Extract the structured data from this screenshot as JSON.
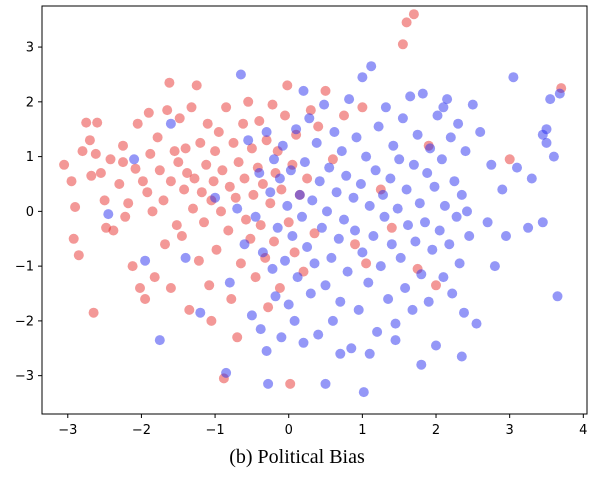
{
  "caption": "(b) Political Bias",
  "chart_data": {
    "type": "scatter",
    "title": "",
    "xlabel": "",
    "ylabel": "",
    "xlim": [
      -3.35,
      4.05
    ],
    "ylim": [
      -3.7,
      3.75
    ],
    "xticks": [
      -3,
      -2,
      -1,
      0,
      1,
      2,
      3,
      4
    ],
    "yticks": [
      -3,
      -2,
      -1,
      0,
      1,
      2,
      3
    ],
    "grid": false,
    "legend": "none",
    "colors": {
      "series_a": "#e8312f",
      "series_b": "#2a2ff0"
    },
    "marker_opacity": 0.5,
    "series": [
      {
        "color": "#e8312f",
        "points": [
          [
            -3.05,
            0.85
          ],
          [
            -2.95,
            0.55
          ],
          [
            -2.92,
            -0.5
          ],
          [
            -2.9,
            0.08
          ],
          [
            -2.85,
            -0.8
          ],
          [
            -2.75,
            1.62
          ],
          [
            -2.7,
            1.3
          ],
          [
            -2.68,
            0.65
          ],
          [
            -2.62,
            1.05
          ],
          [
            -2.6,
            1.62
          ],
          [
            -2.65,
            -1.85
          ],
          [
            -2.55,
            0.7
          ],
          [
            -2.5,
            0.2
          ],
          [
            -2.48,
            -0.3
          ],
          [
            -2.42,
            0.95
          ],
          [
            -2.38,
            -0.35
          ],
          [
            -2.3,
            0.5
          ],
          [
            -2.25,
            1.2
          ],
          [
            -2.22,
            -0.1
          ],
          [
            -2.18,
            0.15
          ],
          [
            -2.12,
            -1.0
          ],
          [
            -2.08,
            0.78
          ],
          [
            -2.05,
            1.6
          ],
          [
            -2.02,
            -1.4
          ],
          [
            -1.98,
            0.55
          ],
          [
            -1.95,
            -1.6
          ],
          [
            -1.92,
            0.35
          ],
          [
            -1.88,
            1.05
          ],
          [
            -1.85,
            0.0
          ],
          [
            -1.82,
            -1.2
          ],
          [
            -1.78,
            1.35
          ],
          [
            -1.75,
            0.75
          ],
          [
            -1.7,
            0.2
          ],
          [
            -1.68,
            -0.6
          ],
          [
            -1.65,
            1.85
          ],
          [
            -1.62,
            2.35
          ],
          [
            -1.6,
            0.55
          ],
          [
            -1.55,
            1.1
          ],
          [
            -1.52,
            -0.25
          ],
          [
            -1.5,
            0.9
          ],
          [
            -1.48,
            1.7
          ],
          [
            -1.45,
            -0.45
          ],
          [
            -1.42,
            0.4
          ],
          [
            -1.4,
            1.15
          ],
          [
            -1.38,
            0.7
          ],
          [
            -1.35,
            -1.8
          ],
          [
            -1.32,
            1.9
          ],
          [
            -1.3,
            0.05
          ],
          [
            -1.28,
            0.6
          ],
          [
            -1.25,
            2.3
          ],
          [
            -1.22,
            -0.9
          ],
          [
            -1.2,
            1.25
          ],
          [
            -1.18,
            0.35
          ],
          [
            -1.15,
            -0.2
          ],
          [
            -1.12,
            0.85
          ],
          [
            -1.1,
            1.6
          ],
          [
            -1.08,
            -1.35
          ],
          [
            -1.05,
            0.2
          ],
          [
            -1.02,
            0.55
          ],
          [
            -1.0,
            1.1
          ],
          [
            -0.98,
            -0.7
          ],
          [
            -0.95,
            1.45
          ],
          [
            -0.92,
            0.0
          ],
          [
            -0.9,
            0.75
          ],
          [
            -0.88,
            -3.05
          ],
          [
            -0.85,
            1.9
          ],
          [
            -0.82,
            -0.35
          ],
          [
            -0.8,
            0.45
          ],
          [
            -0.78,
            -1.6
          ],
          [
            -0.75,
            1.25
          ],
          [
            -0.72,
            0.25
          ],
          [
            -0.7,
            -2.3
          ],
          [
            -0.68,
            0.9
          ],
          [
            -0.65,
            -0.95
          ],
          [
            -0.62,
            1.6
          ],
          [
            -0.6,
            0.6
          ],
          [
            -0.58,
            -0.15
          ],
          [
            -0.55,
            2.0
          ],
          [
            -0.52,
            -0.5
          ],
          [
            -0.5,
            1.15
          ],
          [
            -0.48,
            0.3
          ],
          [
            -0.45,
            -1.2
          ],
          [
            -0.42,
            0.8
          ],
          [
            -0.4,
            1.65
          ],
          [
            -0.38,
            -0.25
          ],
          [
            -0.35,
            0.5
          ],
          [
            -0.32,
            -0.85
          ],
          [
            -0.3,
            1.3
          ],
          [
            -0.28,
            -1.75
          ],
          [
            -0.25,
            0.15
          ],
          [
            -0.22,
            1.95
          ],
          [
            -0.2,
            -0.55
          ],
          [
            -0.18,
            0.7
          ],
          [
            -0.15,
            1.1
          ],
          [
            -0.12,
            -1.4
          ],
          [
            -0.1,
            0.4
          ],
          [
            -0.05,
            1.75
          ],
          [
            -0.02,
            2.3
          ],
          [
            0.0,
            -0.2
          ],
          [
            0.02,
            -3.15
          ],
          [
            0.05,
            0.85
          ],
          [
            0.08,
            -0.75
          ],
          [
            0.1,
            1.4
          ],
          [
            0.15,
            0.3
          ],
          [
            0.2,
            -1.1
          ],
          [
            0.25,
            0.6
          ],
          [
            0.3,
            1.85
          ],
          [
            0.35,
            -0.4
          ],
          [
            0.4,
            1.55
          ],
          [
            0.5,
            2.2
          ],
          [
            0.6,
            0.95
          ],
          [
            0.75,
            1.75
          ],
          [
            0.9,
            -0.6
          ],
          [
            1.0,
            1.9
          ],
          [
            1.05,
            -0.95
          ],
          [
            1.25,
            0.4
          ],
          [
            1.4,
            -0.3
          ],
          [
            1.55,
            3.05
          ],
          [
            1.6,
            3.45
          ],
          [
            1.7,
            3.6
          ],
          [
            1.75,
            -1.05
          ],
          [
            1.9,
            1.2
          ],
          [
            2.0,
            -1.35
          ],
          [
            3.0,
            0.95
          ],
          [
            3.7,
            2.25
          ],
          [
            -1.05,
            -2.0
          ],
          [
            -1.6,
            -1.4
          ],
          [
            -2.25,
            0.9
          ],
          [
            -1.9,
            1.8
          ],
          [
            -2.8,
            1.1
          ]
        ]
      },
      {
        "color": "#2a2ff0",
        "points": [
          [
            -2.45,
            -0.05
          ],
          [
            -2.1,
            0.95
          ],
          [
            -1.95,
            -0.9
          ],
          [
            -1.75,
            -2.35
          ],
          [
            -1.6,
            1.6
          ],
          [
            -1.4,
            -0.85
          ],
          [
            -1.2,
            -1.85
          ],
          [
            -1.0,
            0.25
          ],
          [
            -0.85,
            -2.95
          ],
          [
            -0.8,
            -1.3
          ],
          [
            -0.7,
            0.05
          ],
          [
            -0.65,
            2.5
          ],
          [
            -0.6,
            -0.6
          ],
          [
            -0.55,
            1.3
          ],
          [
            -0.5,
            -1.9
          ],
          [
            -0.45,
            -0.1
          ],
          [
            -0.4,
            0.7
          ],
          [
            -0.38,
            -2.15
          ],
          [
            -0.35,
            -0.75
          ],
          [
            -0.3,
            1.45
          ],
          [
            -0.28,
            -3.15
          ],
          [
            -0.25,
            0.35
          ],
          [
            -0.22,
            -1.05
          ],
          [
            -0.2,
            0.95
          ],
          [
            -0.18,
            -1.55
          ],
          [
            -0.15,
            -0.3
          ],
          [
            -0.12,
            0.6
          ],
          [
            -0.1,
            -2.3
          ],
          [
            -0.08,
            1.2
          ],
          [
            -0.05,
            -0.9
          ],
          [
            -0.02,
            0.1
          ],
          [
            0.0,
            -1.7
          ],
          [
            0.03,
            0.75
          ],
          [
            0.05,
            -0.45
          ],
          [
            0.08,
            -2.0
          ],
          [
            0.1,
            1.5
          ],
          [
            0.12,
            -1.2
          ],
          [
            0.15,
            0.3
          ],
          [
            0.18,
            -0.1
          ],
          [
            0.2,
            -2.4
          ],
          [
            0.22,
            0.9
          ],
          [
            0.25,
            -0.65
          ],
          [
            0.28,
            1.7
          ],
          [
            0.3,
            -1.5
          ],
          [
            0.32,
            0.2
          ],
          [
            0.35,
            -0.95
          ],
          [
            0.38,
            1.25
          ],
          [
            0.4,
            -2.25
          ],
          [
            0.42,
            0.55
          ],
          [
            0.45,
            -0.3
          ],
          [
            0.48,
            1.95
          ],
          [
            0.5,
            -1.35
          ],
          [
            0.52,
            0.0
          ],
          [
            0.55,
            0.8
          ],
          [
            0.58,
            -0.85
          ],
          [
            0.6,
            -2.0
          ],
          [
            0.62,
            1.45
          ],
          [
            0.65,
            0.35
          ],
          [
            0.68,
            -0.5
          ],
          [
            0.7,
            -1.65
          ],
          [
            0.72,
            1.1
          ],
          [
            0.75,
            -0.15
          ],
          [
            0.78,
            0.65
          ],
          [
            0.8,
            -1.1
          ],
          [
            0.82,
            2.05
          ],
          [
            0.85,
            -2.5
          ],
          [
            0.88,
            0.25
          ],
          [
            0.9,
            -0.35
          ],
          [
            0.92,
            1.35
          ],
          [
            0.95,
            -1.8
          ],
          [
            0.98,
            0.5
          ],
          [
            1.0,
            -0.75
          ],
          [
            1.02,
            -3.3
          ],
          [
            1.05,
            1.0
          ],
          [
            1.08,
            -1.3
          ],
          [
            1.1,
            0.1
          ],
          [
            1.12,
            2.65
          ],
          [
            1.15,
            -0.45
          ],
          [
            1.18,
            0.75
          ],
          [
            1.2,
            -2.2
          ],
          [
            1.22,
            1.55
          ],
          [
            1.25,
            -1.0
          ],
          [
            1.28,
            0.3
          ],
          [
            1.3,
            -0.1
          ],
          [
            1.32,
            1.9
          ],
          [
            1.35,
            -1.6
          ],
          [
            1.38,
            0.6
          ],
          [
            1.4,
            -0.6
          ],
          [
            1.42,
            1.2
          ],
          [
            1.45,
            -2.05
          ],
          [
            1.48,
            0.05
          ],
          [
            1.5,
            0.95
          ],
          [
            1.52,
            -0.85
          ],
          [
            1.55,
            1.7
          ],
          [
            1.58,
            -1.4
          ],
          [
            1.6,
            0.4
          ],
          [
            1.62,
            -0.25
          ],
          [
            1.65,
            2.1
          ],
          [
            1.68,
            -1.8
          ],
          [
            1.7,
            0.85
          ],
          [
            1.72,
            -0.55
          ],
          [
            1.75,
            1.4
          ],
          [
            1.78,
            0.15
          ],
          [
            1.8,
            -1.15
          ],
          [
            1.82,
            2.15
          ],
          [
            1.85,
            -0.2
          ],
          [
            1.88,
            0.7
          ],
          [
            1.9,
            -1.65
          ],
          [
            1.92,
            1.15
          ],
          [
            1.95,
            -0.7
          ],
          [
            1.98,
            0.45
          ],
          [
            2.0,
            -2.45
          ],
          [
            2.02,
            1.75
          ],
          [
            2.05,
            -0.35
          ],
          [
            2.08,
            0.95
          ],
          [
            2.1,
            -1.2
          ],
          [
            2.12,
            0.1
          ],
          [
            2.15,
            2.05
          ],
          [
            2.18,
            -0.6
          ],
          [
            2.2,
            1.35
          ],
          [
            2.22,
            -1.5
          ],
          [
            2.25,
            0.55
          ],
          [
            2.28,
            -0.1
          ],
          [
            2.3,
            1.6
          ],
          [
            2.32,
            -0.95
          ],
          [
            2.35,
            0.3
          ],
          [
            2.38,
            -1.85
          ],
          [
            2.4,
            1.1
          ],
          [
            2.42,
            0.0
          ],
          [
            2.45,
            -0.45
          ],
          [
            2.5,
            1.95
          ],
          [
            2.55,
            -2.05
          ],
          [
            2.6,
            1.45
          ],
          [
            2.7,
            -0.2
          ],
          [
            2.75,
            0.85
          ],
          [
            2.8,
            -1.0
          ],
          [
            2.9,
            0.4
          ],
          [
            2.95,
            -0.45
          ],
          [
            3.05,
            2.45
          ],
          [
            3.1,
            0.8
          ],
          [
            3.25,
            -0.3
          ],
          [
            3.3,
            0.6
          ],
          [
            3.45,
            -0.2
          ],
          [
            3.5,
            1.5
          ],
          [
            3.55,
            2.05
          ],
          [
            3.6,
            1.0
          ],
          [
            3.65,
            -1.55
          ],
          [
            3.68,
            2.15
          ],
          [
            3.45,
            1.4
          ],
          [
            3.5,
            1.25
          ],
          [
            1.1,
            -2.6
          ],
          [
            0.5,
            -3.15
          ],
          [
            1.8,
            -2.8
          ],
          [
            -0.3,
            -2.55
          ],
          [
            0.7,
            -2.6
          ],
          [
            2.35,
            -2.65
          ],
          [
            1.45,
            -2.35
          ],
          [
            0.2,
            2.2
          ],
          [
            1.0,
            2.45
          ],
          [
            2.1,
            1.9
          ]
        ]
      }
    ]
  }
}
